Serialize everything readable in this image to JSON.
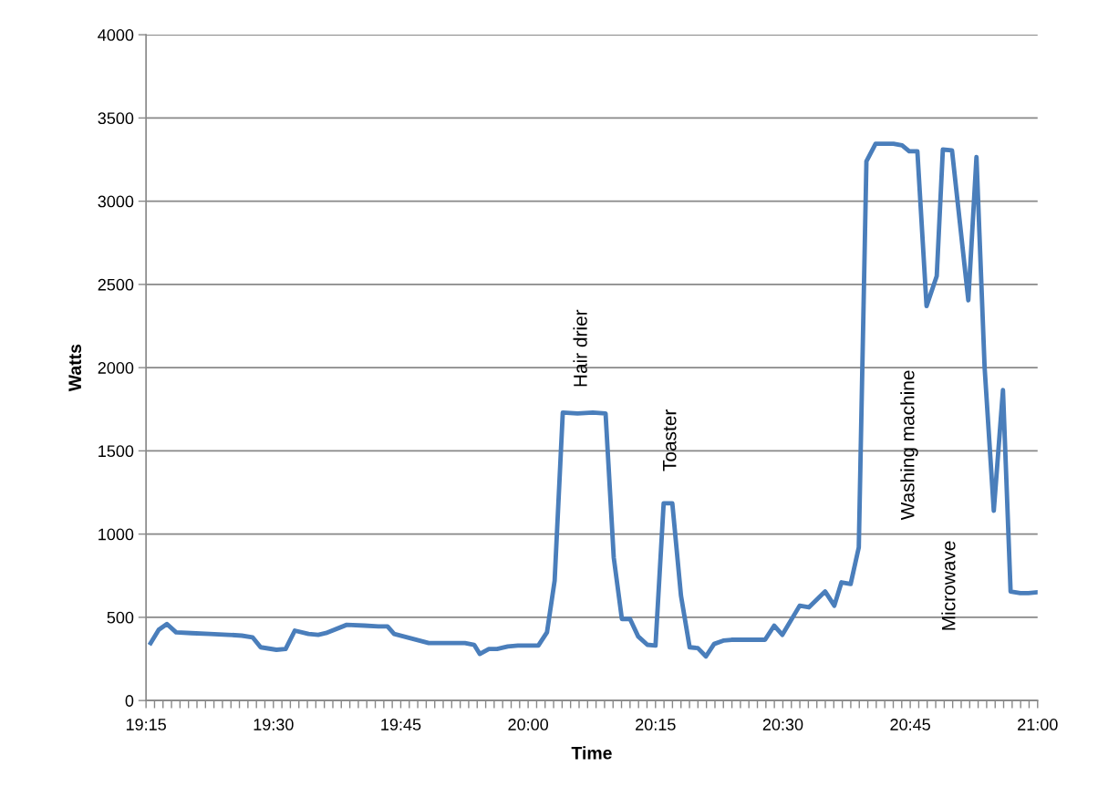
{
  "chart_data": {
    "type": "line",
    "xlabel": "Time",
    "ylabel": "Watts",
    "x": [
      19.259,
      19.275,
      19.291,
      19.309,
      19.339,
      19.375,
      19.411,
      19.438,
      19.459,
      19.475,
      19.506,
      19.524,
      19.542,
      19.569,
      19.588,
      19.603,
      19.644,
      19.679,
      19.706,
      19.724,
      19.737,
      19.805,
      19.876,
      19.894,
      19.905,
      19.923,
      19.939,
      19.96,
      19.98,
      20.02,
      20.037,
      20.052,
      20.068,
      20.097,
      20.127,
      20.152,
      20.168,
      20.184,
      20.2,
      20.216,
      20.234,
      20.25,
      20.266,
      20.283,
      20.3,
      20.317,
      20.333,
      20.349,
      20.365,
      20.383,
      20.399,
      20.465,
      20.483,
      20.499,
      20.533,
      20.551,
      20.583,
      20.601,
      20.615,
      20.633,
      20.649,
      20.664,
      20.682,
      20.717,
      20.734,
      20.748,
      20.764,
      20.782,
      20.802,
      20.814,
      20.832,
      20.848,
      20.864,
      20.88,
      20.896,
      20.914,
      20.932,
      20.947,
      20.966,
      20.982,
      20.998
    ],
    "series": [
      {
        "color": "#4a7ebb",
        "values": [
          345,
          425,
          460,
          410,
          405,
          400,
          395,
          390,
          380,
          320,
          305,
          310,
          420,
          400,
          395,
          405,
          455,
          450,
          445,
          445,
          400,
          345,
          345,
          335,
          280,
          310,
          310,
          325,
          330,
          330,
          410,
          720,
          1730,
          1725,
          1730,
          1725,
          860,
          490,
          490,
          385,
          335,
          330,
          1185,
          1185,
          630,
          320,
          315,
          265,
          340,
          360,
          365,
          365,
          450,
          395,
          570,
          560,
          655,
          570,
          710,
          700,
          920,
          3240,
          3345,
          3345,
          3335,
          3300,
          3300,
          2370,
          2550,
          3310,
          3305,
          2855,
          2405,
          3265,
          2000,
          1140,
          1865,
          655,
          645,
          645,
          650
        ]
      }
    ],
    "xlim": [
      19.25,
      21.0
    ],
    "ylim": [
      0,
      4000
    ],
    "yticks": [
      0,
      500,
      1000,
      1500,
      2000,
      2500,
      3000,
      3500,
      4000
    ],
    "xticks": [
      {
        "value": 19.25,
        "label": "19:15"
      },
      {
        "value": 19.5,
        "label": "19:30"
      },
      {
        "value": 19.75,
        "label": "19:45"
      },
      {
        "value": 20.0,
        "label": "20:00"
      },
      {
        "value": 20.25,
        "label": "20:15"
      },
      {
        "value": 20.5,
        "label": "20:30"
      },
      {
        "value": 20.75,
        "label": "20:45"
      },
      {
        "value": 21.0,
        "label": "21:00"
      },
      {
        "value": 19.2667,
        "label": null
      },
      {
        "value": 19.2833,
        "label": null
      },
      {
        "value": 19.3,
        "label": null
      },
      {
        "value": 19.3167,
        "label": null
      },
      {
        "value": 19.3333,
        "label": null
      },
      {
        "value": 19.35,
        "label": null
      },
      {
        "value": 19.3667,
        "label": null
      },
      {
        "value": 19.3833,
        "label": null
      },
      {
        "value": 19.4,
        "label": null
      },
      {
        "value": 19.4167,
        "label": null
      },
      {
        "value": 19.4333,
        "label": null
      },
      {
        "value": 19.45,
        "label": null
      },
      {
        "value": 19.4667,
        "label": null
      },
      {
        "value": 19.4833,
        "label": null
      },
      {
        "value": 19.5167,
        "label": null
      },
      {
        "value": 19.5333,
        "label": null
      },
      {
        "value": 19.55,
        "label": null
      },
      {
        "value": 19.5667,
        "label": null
      },
      {
        "value": 19.5833,
        "label": null
      },
      {
        "value": 19.6,
        "label": null
      },
      {
        "value": 19.6167,
        "label": null
      },
      {
        "value": 19.6333,
        "label": null
      },
      {
        "value": 19.65,
        "label": null
      },
      {
        "value": 19.6667,
        "label": null
      },
      {
        "value": 19.6833,
        "label": null
      },
      {
        "value": 19.7,
        "label": null
      },
      {
        "value": 19.7167,
        "label": null
      },
      {
        "value": 19.7333,
        "label": null
      },
      {
        "value": 19.7667,
        "label": null
      },
      {
        "value": 19.7833,
        "label": null
      },
      {
        "value": 19.8,
        "label": null
      },
      {
        "value": 19.8167,
        "label": null
      },
      {
        "value": 19.8333,
        "label": null
      },
      {
        "value": 19.85,
        "label": null
      },
      {
        "value": 19.8667,
        "label": null
      },
      {
        "value": 19.8833,
        "label": null
      },
      {
        "value": 19.9,
        "label": null
      },
      {
        "value": 19.9167,
        "label": null
      },
      {
        "value": 19.9333,
        "label": null
      },
      {
        "value": 19.95,
        "label": null
      },
      {
        "value": 19.9667,
        "label": null
      },
      {
        "value": 19.9833,
        "label": null
      },
      {
        "value": 20.0167,
        "label": null
      },
      {
        "value": 20.0333,
        "label": null
      },
      {
        "value": 20.05,
        "label": null
      },
      {
        "value": 20.0667,
        "label": null
      },
      {
        "value": 20.0833,
        "label": null
      },
      {
        "value": 20.1,
        "label": null
      },
      {
        "value": 20.1167,
        "label": null
      },
      {
        "value": 20.1333,
        "label": null
      },
      {
        "value": 20.15,
        "label": null
      },
      {
        "value": 20.1667,
        "label": null
      },
      {
        "value": 20.1833,
        "label": null
      },
      {
        "value": 20.2,
        "label": null
      },
      {
        "value": 20.2167,
        "label": null
      },
      {
        "value": 20.2333,
        "label": null
      },
      {
        "value": 20.2667,
        "label": null
      },
      {
        "value": 20.2833,
        "label": null
      },
      {
        "value": 20.3,
        "label": null
      },
      {
        "value": 20.3167,
        "label": null
      },
      {
        "value": 20.3333,
        "label": null
      },
      {
        "value": 20.35,
        "label": null
      },
      {
        "value": 20.3667,
        "label": null
      },
      {
        "value": 20.3833,
        "label": null
      },
      {
        "value": 20.4,
        "label": null
      },
      {
        "value": 20.4167,
        "label": null
      },
      {
        "value": 20.4333,
        "label": null
      },
      {
        "value": 20.45,
        "label": null
      },
      {
        "value": 20.4667,
        "label": null
      },
      {
        "value": 20.4833,
        "label": null
      },
      {
        "value": 20.5167,
        "label": null
      },
      {
        "value": 20.5333,
        "label": null
      },
      {
        "value": 20.55,
        "label": null
      },
      {
        "value": 20.5667,
        "label": null
      },
      {
        "value": 20.5833,
        "label": null
      },
      {
        "value": 20.6,
        "label": null
      },
      {
        "value": 20.6167,
        "label": null
      },
      {
        "value": 20.6333,
        "label": null
      },
      {
        "value": 20.65,
        "label": null
      },
      {
        "value": 20.6667,
        "label": null
      },
      {
        "value": 20.6833,
        "label": null
      },
      {
        "value": 20.7,
        "label": null
      },
      {
        "value": 20.7167,
        "label": null
      },
      {
        "value": 20.7333,
        "label": null
      },
      {
        "value": 20.7667,
        "label": null
      },
      {
        "value": 20.7833,
        "label": null
      },
      {
        "value": 20.8,
        "label": null
      },
      {
        "value": 20.8167,
        "label": null
      },
      {
        "value": 20.8333,
        "label": null
      },
      {
        "value": 20.85,
        "label": null
      },
      {
        "value": 20.8667,
        "label": null
      },
      {
        "value": 20.8833,
        "label": null
      },
      {
        "value": 20.9,
        "label": null
      },
      {
        "value": 20.9167,
        "label": null
      },
      {
        "value": 20.9333,
        "label": null
      },
      {
        "value": 20.95,
        "label": null
      },
      {
        "value": 20.9667,
        "label": null
      },
      {
        "value": 20.9833,
        "label": null
      }
    ],
    "grid": "y",
    "legend": false,
    "marker": "none",
    "line_style": "solid",
    "annotations": [
      "Hair drier",
      "Toaster",
      "Washing machine",
      "Microwave"
    ]
  }
}
